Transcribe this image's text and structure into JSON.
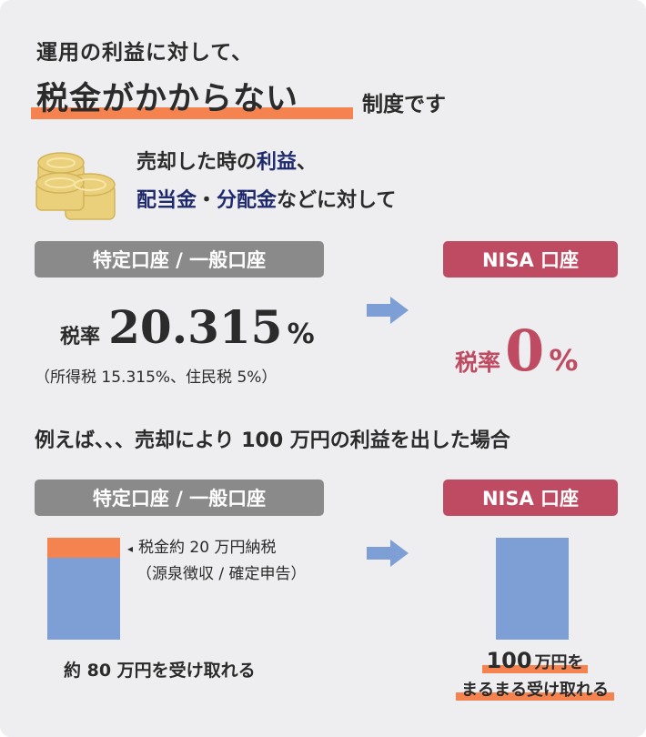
{
  "heading": {
    "line1": "運用の利益に対して、",
    "highlight": "税金がかからない",
    "suffix": "制度です"
  },
  "lead": {
    "line1_a": "売却した時の",
    "line1_em": "利益",
    "line1_b": "、",
    "line2_em1": "配当金",
    "line2_sep": "・",
    "line2_em2": "分配金",
    "line2_b": "などに対して"
  },
  "accounts": {
    "taxable": "特定口座 / 一般口座",
    "nisa": "NISA 口座"
  },
  "rates": {
    "label": "税率",
    "taxable_value": "20.315",
    "percent": "%",
    "taxable_breakdown": "（所得税 15.315%、住民税 5%）",
    "nisa_value": "0"
  },
  "example": {
    "title": "例えば、、、売却により 100 万円の利益を出した場合",
    "tax_marker": "◂",
    "tax_note1": "税金約 20 万円納税",
    "tax_note2": "（源泉徴収 / 確定申告）",
    "taxable_receive": "約 80 万円を受け取れる",
    "nisa_receive_amount": "100",
    "nisa_receive_unit": "万円を",
    "nisa_receive_line2": "まるまる受け取れる"
  },
  "chart_data": {
    "type": "bar",
    "categories": [
      "特定口座 / 一般口座",
      "NISA 口座"
    ],
    "series": [
      {
        "name": "",
        "values": [
          80,
          100
        ]
      },
      {
        "name": "",
        "values": [
          20,
          0
        ]
      }
    ],
    "ylim": [
      0,
      100
    ]
  },
  "colors": {
    "accent_orange": "#f5834f",
    "nisa_red": "#bf4b62",
    "taxable_gray": "#8a8a8a",
    "bar_blue": "#7e9fd6",
    "navy": "#1f2a6d",
    "coin_gold": "#ead07a"
  },
  "icons": {
    "coins": "coins-icon",
    "arrow": "arrow-right-icon"
  }
}
